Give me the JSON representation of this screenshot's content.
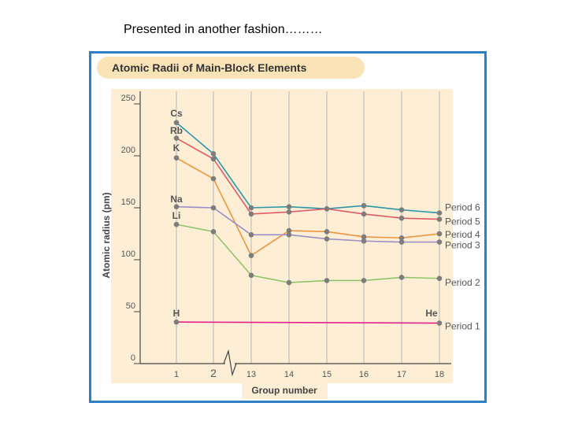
{
  "slide": {
    "heading": "Presented in another fashion………"
  },
  "colors": {
    "frame": "#2f7fc6",
    "title_band": "#fbe3b8",
    "plot_bg": "#fdeed5",
    "grid": "#b7b7b7",
    "marker": "#7d7d7d",
    "label_text": "#555555"
  },
  "chart_data": {
    "type": "line",
    "title": "Atomic Radii of Main-Block Elements",
    "xlabel": "Group number",
    "ylabel": "Atomic radius (pm)",
    "ylim": [
      0,
      250
    ],
    "yticks": [
      0,
      50,
      100,
      150,
      200,
      250
    ],
    "categories": [
      "1",
      "2",
      "13",
      "14",
      "15",
      "16",
      "17",
      "18"
    ],
    "axis_break_between": [
      "2",
      "13"
    ],
    "grid": true,
    "series": [
      {
        "name": "Period 6",
        "color": "#2a96a6",
        "values": [
          232,
          202,
          150,
          151,
          149,
          152,
          148,
          145
        ]
      },
      {
        "name": "Period 5",
        "color": "#e05a6a",
        "values": [
          217,
          197,
          144,
          146,
          149,
          144,
          140,
          139
        ]
      },
      {
        "name": "Period 4",
        "color": "#ef9540",
        "values": [
          198,
          178,
          104,
          128,
          127,
          122,
          121,
          125
        ]
      },
      {
        "name": "Period 3",
        "color": "#9b8fc6",
        "values": [
          151,
          150,
          124,
          124,
          120,
          118,
          117,
          117
        ]
      },
      {
        "name": "Period 2",
        "color": "#90c56c",
        "values": [
          134,
          127,
          85,
          78,
          80,
          80,
          83,
          82
        ]
      },
      {
        "name": "Period 1",
        "color": "#e0218a",
        "values": [
          40,
          null,
          null,
          null,
          null,
          null,
          null,
          39
        ]
      }
    ],
    "element_labels": [
      {
        "text": "Cs",
        "category": "1"
      },
      {
        "text": "Rb",
        "category": "1"
      },
      {
        "text": "K",
        "category": "1"
      },
      {
        "text": "Na",
        "category": "1"
      },
      {
        "text": "Li",
        "category": "1"
      },
      {
        "text": "H",
        "category": "1"
      },
      {
        "text": "He",
        "category": "18"
      }
    ]
  }
}
